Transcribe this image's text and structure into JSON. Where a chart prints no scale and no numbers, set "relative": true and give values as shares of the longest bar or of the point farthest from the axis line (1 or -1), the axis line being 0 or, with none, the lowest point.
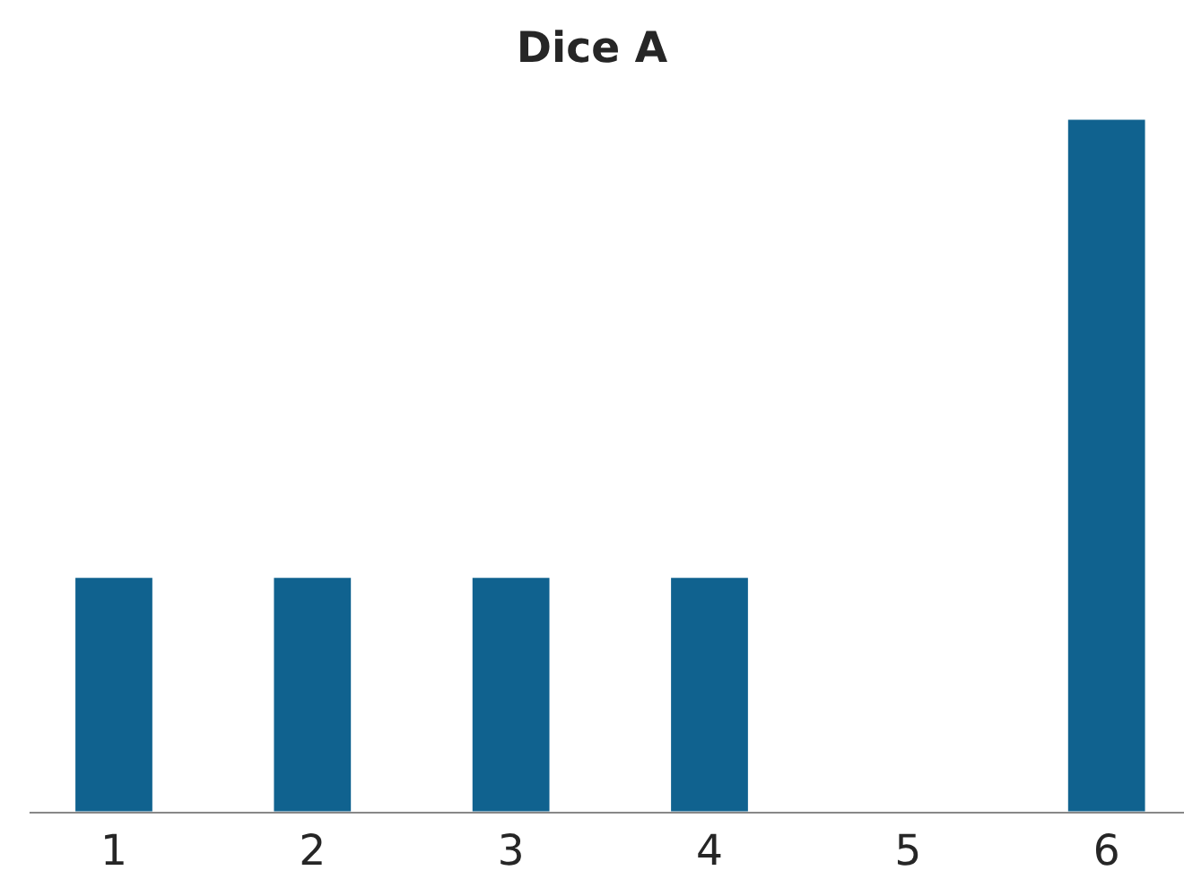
{
  "chart_data": {
    "type": "bar",
    "title": "Dice A",
    "relative": true,
    "categories": [
      "1",
      "2",
      "3",
      "4",
      "5",
      "6"
    ],
    "values": [
      0.34,
      0.34,
      0.34,
      0.34,
      null,
      1
    ],
    "color": "#10628f",
    "grid": false,
    "legend": false
  }
}
